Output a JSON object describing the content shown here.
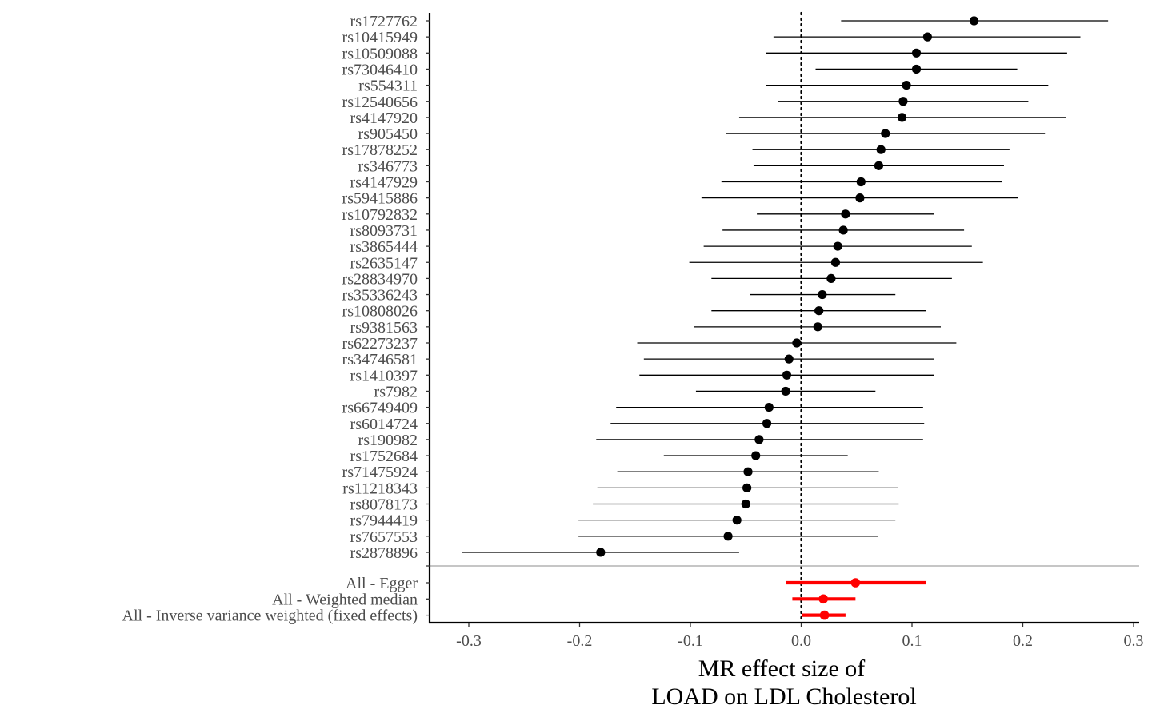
{
  "chart_data": {
    "type": "scatter",
    "subtype": "forest",
    "xlabel": [
      "MR effect size of",
      "LOAD on LDL Cholesterol"
    ],
    "xlim": [
      -0.335,
      0.305
    ],
    "xticks": [
      -0.3,
      -0.2,
      -0.1,
      0.0,
      0.1,
      0.2,
      0.3
    ],
    "xtick_labels": [
      "-0.3",
      "-0.2",
      "-0.1",
      "0.0",
      "0.1",
      "0.2",
      "0.3"
    ],
    "reference_line": {
      "x": 0,
      "style": "dotted"
    },
    "grid": false,
    "colors": {
      "snp": "#000000",
      "summary": "#ff0000",
      "separator": "#b3b3b3"
    },
    "snps": [
      {
        "label": "rs1727762",
        "b": 0.156,
        "lo": 0.036,
        "hi": 0.277
      },
      {
        "label": "rs10415949",
        "b": 0.114,
        "lo": -0.025,
        "hi": 0.252
      },
      {
        "label": "rs10509088",
        "b": 0.104,
        "lo": -0.032,
        "hi": 0.24
      },
      {
        "label": "rs73046410",
        "b": 0.104,
        "lo": 0.013,
        "hi": 0.195
      },
      {
        "label": "rs554311",
        "b": 0.095,
        "lo": -0.032,
        "hi": 0.223
      },
      {
        "label": "rs12540656",
        "b": 0.092,
        "lo": -0.021,
        "hi": 0.205
      },
      {
        "label": "rs4147920",
        "b": 0.091,
        "lo": -0.056,
        "hi": 0.239
      },
      {
        "label": "rs905450",
        "b": 0.076,
        "lo": -0.068,
        "hi": 0.22
      },
      {
        "label": "rs17878252",
        "b": 0.072,
        "lo": -0.044,
        "hi": 0.188
      },
      {
        "label": "rs346773",
        "b": 0.07,
        "lo": -0.043,
        "hi": 0.183
      },
      {
        "label": "rs4147929",
        "b": 0.054,
        "lo": -0.072,
        "hi": 0.181
      },
      {
        "label": "rs59415886",
        "b": 0.053,
        "lo": -0.09,
        "hi": 0.196
      },
      {
        "label": "rs10792832",
        "b": 0.04,
        "lo": -0.04,
        "hi": 0.12
      },
      {
        "label": "rs8093731",
        "b": 0.038,
        "lo": -0.071,
        "hi": 0.147
      },
      {
        "label": "rs3865444",
        "b": 0.033,
        "lo": -0.088,
        "hi": 0.154
      },
      {
        "label": "rs2635147",
        "b": 0.031,
        "lo": -0.101,
        "hi": 0.164
      },
      {
        "label": "rs28834970",
        "b": 0.027,
        "lo": -0.081,
        "hi": 0.136
      },
      {
        "label": "rs35336243",
        "b": 0.019,
        "lo": -0.046,
        "hi": 0.085
      },
      {
        "label": "rs10808026",
        "b": 0.016,
        "lo": -0.081,
        "hi": 0.113
      },
      {
        "label": "rs9381563",
        "b": 0.015,
        "lo": -0.097,
        "hi": 0.126
      },
      {
        "label": "rs62273237",
        "b": -0.004,
        "lo": -0.148,
        "hi": 0.14
      },
      {
        "label": "rs34746581",
        "b": -0.011,
        "lo": -0.142,
        "hi": 0.12
      },
      {
        "label": "rs1410397",
        "b": -0.013,
        "lo": -0.146,
        "hi": 0.12
      },
      {
        "label": "rs7982",
        "b": -0.014,
        "lo": -0.095,
        "hi": 0.067
      },
      {
        "label": "rs66749409",
        "b": -0.029,
        "lo": -0.167,
        "hi": 0.11
      },
      {
        "label": "rs6014724",
        "b": -0.031,
        "lo": -0.172,
        "hi": 0.111
      },
      {
        "label": "rs190982",
        "b": -0.038,
        "lo": -0.185,
        "hi": 0.11
      },
      {
        "label": "rs1752684",
        "b": -0.041,
        "lo": -0.124,
        "hi": 0.042
      },
      {
        "label": "rs71475924",
        "b": -0.048,
        "lo": -0.166,
        "hi": 0.07
      },
      {
        "label": "rs11218343",
        "b": -0.049,
        "lo": -0.184,
        "hi": 0.087
      },
      {
        "label": "rs8078173",
        "b": -0.05,
        "lo": -0.188,
        "hi": 0.088
      },
      {
        "label": "rs7944419",
        "b": -0.058,
        "lo": -0.201,
        "hi": 0.085
      },
      {
        "label": "rs7657553",
        "b": -0.066,
        "lo": -0.201,
        "hi": 0.069
      },
      {
        "label": "rs2878896",
        "b": -0.181,
        "lo": -0.306,
        "hi": -0.056
      }
    ],
    "summary": [
      {
        "label": "All - Egger",
        "b": 0.049,
        "lo": -0.014,
        "hi": 0.113
      },
      {
        "label": "All - Weighted median",
        "b": 0.02,
        "lo": -0.008,
        "hi": 0.049
      },
      {
        "label": "All - Inverse variance weighted (fixed effects)",
        "b": 0.021,
        "lo": 0.001,
        "hi": 0.04
      }
    ]
  }
}
